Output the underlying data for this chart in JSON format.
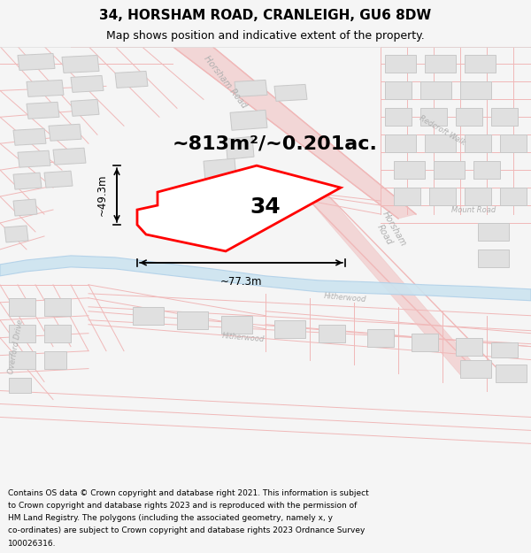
{
  "title": "34, HORSHAM ROAD, CRANLEIGH, GU6 8DW",
  "subtitle": "Map shows position and indicative extent of the property.",
  "footer": "Contains OS data © Crown copyright and database right 2021. This information is subject to Crown copyright and database rights 2023 and is reproduced with the permission of HM Land Registry. The polygons (including the associated geometry, namely x, y co-ordinates) are subject to Crown copyright and database rights 2023 Ordnance Survey 100026316.",
  "area_label": "~813m²/~0.201ac.",
  "dim_height": "~49.3m",
  "dim_width": "~77.3m",
  "property_number": "34",
  "bg_color": "#f5f5f5",
  "map_bg": "#f9f9f9",
  "road_line_color": "#f0b8b8",
  "building_fill": "#e0e0e0",
  "building_edge": "#c8c8c8",
  "property_edge": "#ff0000",
  "property_fill": "#ffffff",
  "river_color": "#cce4f0",
  "river_edge": "#b0d0e8",
  "street_label_color": "#b0b0b0",
  "title_fontsize": 11,
  "subtitle_fontsize": 9,
  "footer_fontsize": 6.5,
  "area_label_fontsize": 16,
  "dim_fontsize": 8.5,
  "property_label_fontsize": 18,
  "street_label_fontsize": 7
}
